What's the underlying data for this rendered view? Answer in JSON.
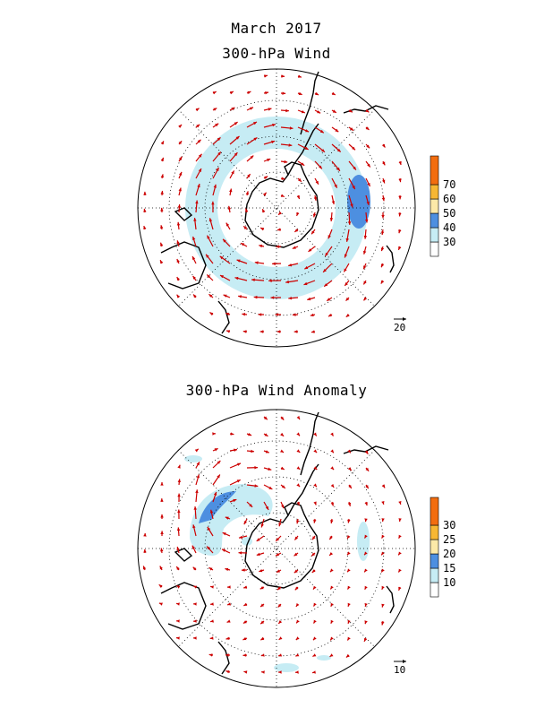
{
  "header": {
    "title": "March 2017",
    "panel1_title": "300-hPa Wind",
    "panel2_title": "300-hPa Wind Anomaly"
  },
  "panel1": {
    "colorbar": {
      "labels": [
        "30",
        "40",
        "50",
        "60",
        "70"
      ],
      "colors": [
        "#ffffff",
        "#c6ecf4",
        "#4d8fe0",
        "#fce9a8",
        "#f7b733",
        "#f26d0f"
      ]
    },
    "reference_vector_label": "20"
  },
  "panel2": {
    "colorbar": {
      "labels": [
        "10",
        "15",
        "20",
        "25",
        "30"
      ],
      "colors": [
        "#ffffff",
        "#c6ecf4",
        "#4d8fe0",
        "#fce9a8",
        "#f7b733",
        "#f26d0f"
      ]
    },
    "reference_vector_label": "10"
  },
  "style": {
    "arrow_color": "#cc0000",
    "coast_color": "#000000"
  }
}
